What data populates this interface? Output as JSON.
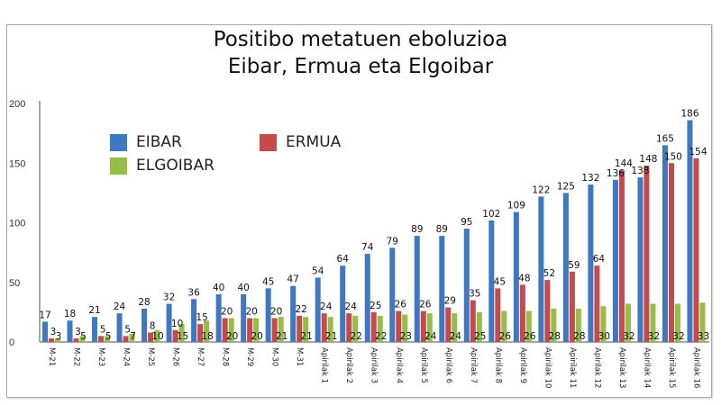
{
  "title_line1": "Positibo metatuen eboluzioa",
  "title_line2": "Eibar, Ermua eta Elgoibar",
  "legend": [
    {
      "label": "EIBAR",
      "color": "#3c78c6"
    },
    {
      "label": "ERMUA",
      "color": "#c94848"
    },
    {
      "label": "ELGOIBAR",
      "color": "#93bf48"
    }
  ],
  "chart_data": {
    "type": "bar",
    "title": "Positibo metatuen eboluzioa\nEibar, Ermua eta Elgoibar",
    "xlabel": "",
    "ylabel": "",
    "ylim": [
      0,
      200
    ],
    "yticks": [
      0,
      50,
      100,
      150,
      200
    ],
    "grid": false,
    "legend_position": "upper-left",
    "categories": [
      "M-21",
      "M-22",
      "M-23",
      "M-24",
      "M-25",
      "M-26",
      "M-27",
      "M-28",
      "M-29",
      "M-30",
      "M-31",
      "Apirilak 1",
      "Apirilak 2",
      "Apirilak 3",
      "Apirilak 4",
      "Apirilak 5",
      "Apirilak 6",
      "Apirilak 7",
      "Apirilak 8",
      "Apirilak 9",
      "Apirilak 10",
      "Apirilak 11",
      "Apirilak 12",
      "Apirilak 13",
      "Apirilak 14",
      "Apirilak 15",
      "Apirilak 16"
    ],
    "series": [
      {
        "name": "EIBAR",
        "color": "#3c78c6",
        "values": [
          17,
          18,
          21,
          24,
          28,
          32,
          36,
          40,
          40,
          45,
          47,
          54,
          64,
          74,
          79,
          89,
          89,
          95,
          102,
          109,
          122,
          125,
          132,
          136,
          138,
          165,
          186
        ]
      },
      {
        "name": "ERMUA",
        "color": "#c94848",
        "values": [
          3,
          3,
          5,
          5,
          8,
          10,
          15,
          20,
          20,
          20,
          22,
          24,
          24,
          25,
          26,
          26,
          29,
          35,
          45,
          48,
          52,
          59,
          64,
          144,
          148,
          150,
          154
        ]
      },
      {
        "name": "ELGOIBAR",
        "color": "#93bf48",
        "values": [
          3,
          5,
          5,
          7,
          10,
          15,
          18,
          20,
          20,
          21,
          21,
          21,
          22,
          22,
          23,
          24,
          24,
          25,
          26,
          26,
          28,
          28,
          30,
          32,
          32,
          32,
          33
        ]
      }
    ]
  }
}
